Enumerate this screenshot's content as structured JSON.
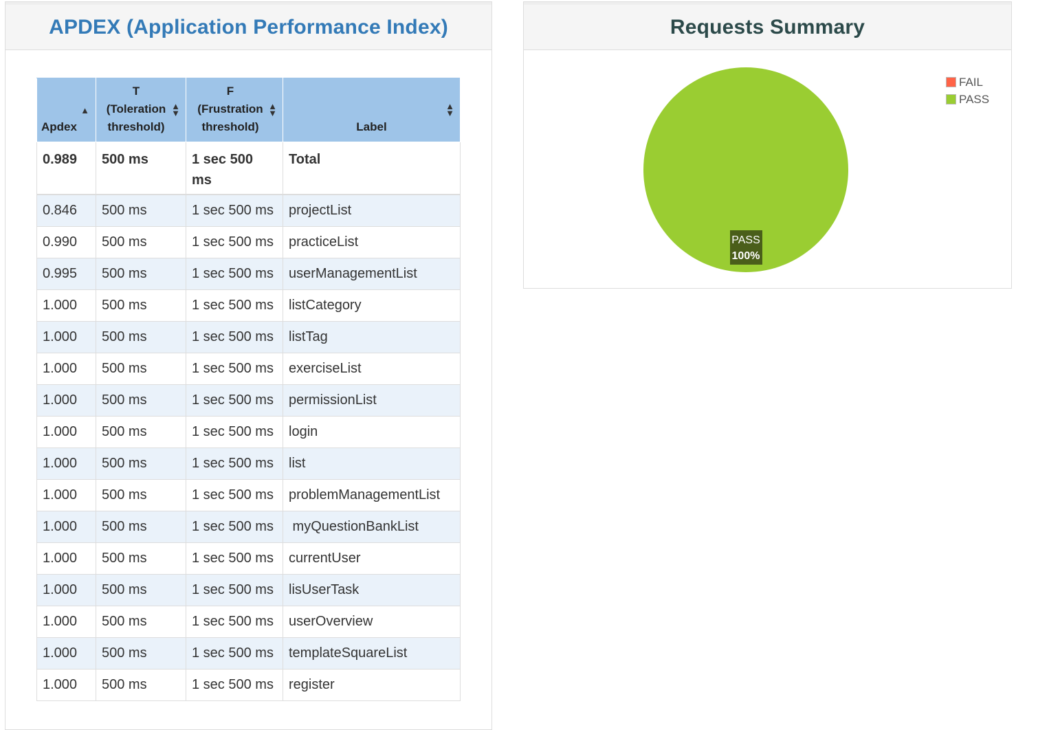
{
  "apdex_panel": {
    "title": "APDEX (Application Performance Index)",
    "columns": {
      "apdex": "Apdex",
      "t_line1": "T",
      "t_line2": "(Toleration",
      "t_line3": "threshold)",
      "f_line1": "F",
      "f_line2": "(Frustration",
      "f_line3": "threshold)",
      "label": "Label"
    },
    "total": {
      "apdex": "0.989",
      "t": "500 ms",
      "f_line1": "1 sec 500",
      "f_line2": "ms",
      "label": "Total"
    },
    "rows": [
      {
        "apdex": "0.846",
        "t": "500 ms",
        "f": "1 sec 500 ms",
        "label": "projectList"
      },
      {
        "apdex": "0.990",
        "t": "500 ms",
        "f": "1 sec 500 ms",
        "label": "practiceList"
      },
      {
        "apdex": "0.995",
        "t": "500 ms",
        "f": "1 sec 500 ms",
        "label": "userManagementList"
      },
      {
        "apdex": "1.000",
        "t": "500 ms",
        "f": "1 sec 500 ms",
        "label": "listCategory"
      },
      {
        "apdex": "1.000",
        "t": "500 ms",
        "f": "1 sec 500 ms",
        "label": "listTag"
      },
      {
        "apdex": "1.000",
        "t": "500 ms",
        "f": "1 sec 500 ms",
        "label": "exerciseList"
      },
      {
        "apdex": "1.000",
        "t": "500 ms",
        "f": "1 sec 500 ms",
        "label": "permissionList"
      },
      {
        "apdex": "1.000",
        "t": "500 ms",
        "f": "1 sec 500 ms",
        "label": "login"
      },
      {
        "apdex": "1.000",
        "t": "500 ms",
        "f": "1 sec 500 ms",
        "label": "list"
      },
      {
        "apdex": "1.000",
        "t": "500 ms",
        "f": "1 sec 500 ms",
        "label": "problemManagementList"
      },
      {
        "apdex": "1.000",
        "t": "500 ms",
        "f": "1 sec 500 ms",
        "label": " myQuestionBankList"
      },
      {
        "apdex": "1.000",
        "t": "500 ms",
        "f": "1 sec 500 ms",
        "label": "currentUser"
      },
      {
        "apdex": "1.000",
        "t": "500 ms",
        "f": "1 sec 500 ms",
        "label": "lisUserTask"
      },
      {
        "apdex": "1.000",
        "t": "500 ms",
        "f": "1 sec 500 ms",
        "label": "userOverview"
      },
      {
        "apdex": "1.000",
        "t": "500 ms",
        "f": "1 sec 500 ms",
        "label": "templateSquareList"
      },
      {
        "apdex": "1.000",
        "t": "500 ms",
        "f": "1 sec 500 ms",
        "label": "register"
      }
    ],
    "sort_icons": {
      "apdex": "sort-asc-icon",
      "t": "sort-both-icon",
      "f": "sort-both-icon",
      "label": "sort-both-icon"
    }
  },
  "summary_panel": {
    "title": "Requests Summary",
    "slice_label": "PASS",
    "slice_percent": "100%",
    "legend": [
      {
        "name": "FAIL",
        "color": "#ff6347"
      },
      {
        "name": "PASS",
        "color": "#9acd32"
      }
    ]
  },
  "chart_data": {
    "type": "pie",
    "categories": [
      "FAIL",
      "PASS"
    ],
    "values": [
      0,
      100
    ],
    "colors": [
      "#ff6347",
      "#9acd32"
    ],
    "legend": "top-right",
    "title": "Requests Summary"
  }
}
